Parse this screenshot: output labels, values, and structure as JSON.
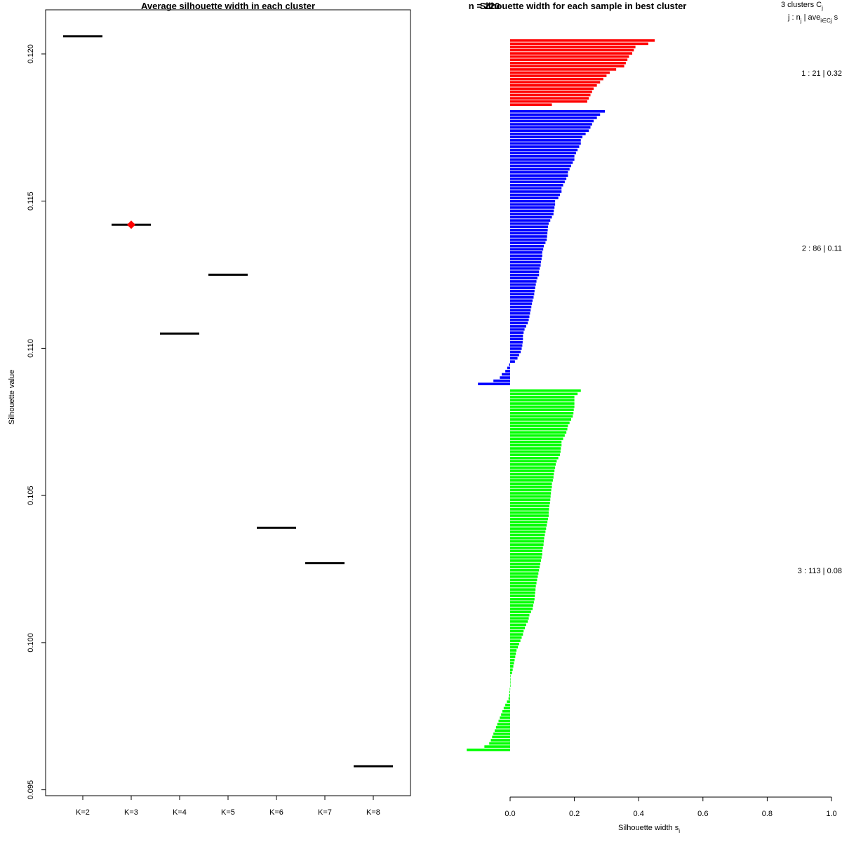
{
  "left_chart": {
    "title": "Average silhouette width in each cluster",
    "ylabel": "Silhouette value",
    "ylim": [
      0.0948,
      0.1215
    ],
    "yticks": [
      "0.095",
      "0.100",
      "0.105",
      "0.110",
      "0.115",
      "0.120"
    ],
    "categories": [
      "K=2",
      "K=3",
      "K=4",
      "K=5",
      "K=6",
      "K=7",
      "K=8"
    ],
    "values": [
      0.1206,
      0.1142,
      0.1105,
      0.1125,
      0.1039,
      0.1027,
      0.0958
    ],
    "best": "K=3",
    "best_color": "#ff0000"
  },
  "right_chart": {
    "title": "Silhouette width for each sample in best cluster",
    "overlap_title": "n = 220",
    "xlabel": "Silhouette width s",
    "xlabel_sub": "i",
    "xticks": [
      "0.0",
      "0.2",
      "0.4",
      "0.6",
      "0.8",
      "1.0"
    ],
    "xlim": [
      0,
      1
    ],
    "legend_header_1": "3  clusters  C",
    "legend_header_1_sub": "j",
    "legend_header_2": "j :  n",
    "legend_header_2_sub": "j",
    "legend_header_2_mid": " | ave",
    "legend_header_2_sub2": "i∈Cj",
    "legend_header_2_end": "  s",
    "clusters": [
      {
        "label": "1 :  21  |  0.32",
        "color": "#ff0000",
        "widths": [
          0.45,
          0.43,
          0.39,
          0.385,
          0.38,
          0.37,
          0.365,
          0.36,
          0.355,
          0.33,
          0.31,
          0.3,
          0.29,
          0.28,
          0.27,
          0.26,
          0.255,
          0.25,
          0.245,
          0.24,
          0.13
        ]
      },
      {
        "label": "2 :  86  |  0.11",
        "color": "#0000ff",
        "widths": [
          0.295,
          0.28,
          0.27,
          0.26,
          0.255,
          0.25,
          0.245,
          0.235,
          0.225,
          0.22,
          0.22,
          0.215,
          0.21,
          0.205,
          0.2,
          0.2,
          0.195,
          0.19,
          0.185,
          0.18,
          0.18,
          0.175,
          0.17,
          0.165,
          0.16,
          0.16,
          0.155,
          0.15,
          0.14,
          0.14,
          0.138,
          0.136,
          0.135,
          0.13,
          0.125,
          0.12,
          0.118,
          0.117,
          0.116,
          0.115,
          0.114,
          0.11,
          0.105,
          0.103,
          0.1,
          0.1,
          0.098,
          0.096,
          0.095,
          0.092,
          0.09,
          0.09,
          0.085,
          0.082,
          0.08,
          0.078,
          0.076,
          0.075,
          0.073,
          0.07,
          0.068,
          0.066,
          0.064,
          0.062,
          0.06,
          0.058,
          0.055,
          0.05,
          0.045,
          0.042,
          0.04,
          0.04,
          0.039,
          0.038,
          0.036,
          0.033,
          0.028,
          0.023,
          0.015,
          -0.003,
          -0.009,
          -0.015,
          -0.026,
          -0.032,
          -0.052,
          -0.1
        ]
      },
      {
        "label": "3 :  113  |  0.08",
        "color": "#00ff00",
        "widths": [
          0.22,
          0.21,
          0.2,
          0.2,
          0.2,
          0.2,
          0.198,
          0.197,
          0.195,
          0.19,
          0.185,
          0.18,
          0.178,
          0.175,
          0.17,
          0.165,
          0.16,
          0.16,
          0.158,
          0.157,
          0.155,
          0.15,
          0.145,
          0.142,
          0.14,
          0.138,
          0.136,
          0.135,
          0.133,
          0.13,
          0.13,
          0.128,
          0.127,
          0.126,
          0.125,
          0.124,
          0.122,
          0.121,
          0.12,
          0.12,
          0.118,
          0.116,
          0.114,
          0.112,
          0.11,
          0.108,
          0.106,
          0.105,
          0.104,
          0.102,
          0.1,
          0.1,
          0.098,
          0.096,
          0.094,
          0.092,
          0.09,
          0.088,
          0.086,
          0.084,
          0.082,
          0.08,
          0.079,
          0.078,
          0.077,
          0.076,
          0.074,
          0.072,
          0.07,
          0.065,
          0.06,
          0.058,
          0.055,
          0.05,
          0.046,
          0.042,
          0.04,
          0.036,
          0.032,
          0.028,
          0.024,
          0.02,
          0.018,
          0.016,
          0.014,
          0.012,
          0.01,
          0.008,
          0.006,
          0,
          0,
          0,
          0,
          -0.001,
          -0.002,
          -0.003,
          -0.005,
          -0.01,
          -0.015,
          -0.02,
          -0.024,
          -0.028,
          -0.032,
          -0.036,
          -0.04,
          -0.044,
          -0.048,
          -0.052,
          -0.056,
          -0.06,
          -0.065,
          -0.08,
          -0.135
        ]
      }
    ]
  }
}
